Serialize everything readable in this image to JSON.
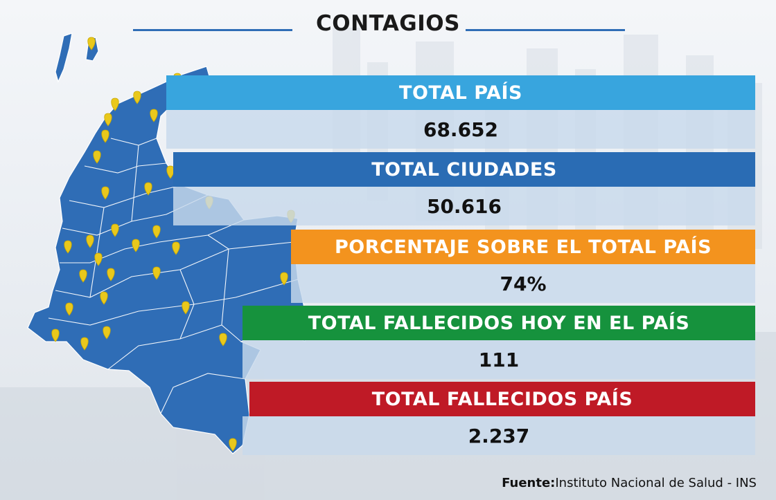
{
  "title": "CONTAGIOS",
  "colors": {
    "map_fill": "#2f6db6",
    "pin": "#e9c81c",
    "accent_line": "#2f6db6"
  },
  "rows": [
    {
      "label": "TOTAL PAÍS",
      "value": "68.652",
      "color": "#38a5de"
    },
    {
      "label": "TOTAL CIUDADES",
      "value": "50.616",
      "color": "#2a6cb4"
    },
    {
      "label": "PORCENTAJE SOBRE EL TOTAL PAÍS",
      "value": "74%",
      "color": "#f3931e"
    },
    {
      "label": "TOTAL FALLECIDOS HOY EN EL PAÍS",
      "value": "111",
      "color": "#16923d"
    },
    {
      "label": "TOTAL FALLECIDOS PAÍS",
      "value": "2.237",
      "color": "#bf1a26"
    }
  ],
  "footer": {
    "source_label": "Fuente:",
    "source_text": "Instituto Nacional de Salud - INS"
  },
  "map": {
    "pin_icon": "map-pin-icon"
  }
}
